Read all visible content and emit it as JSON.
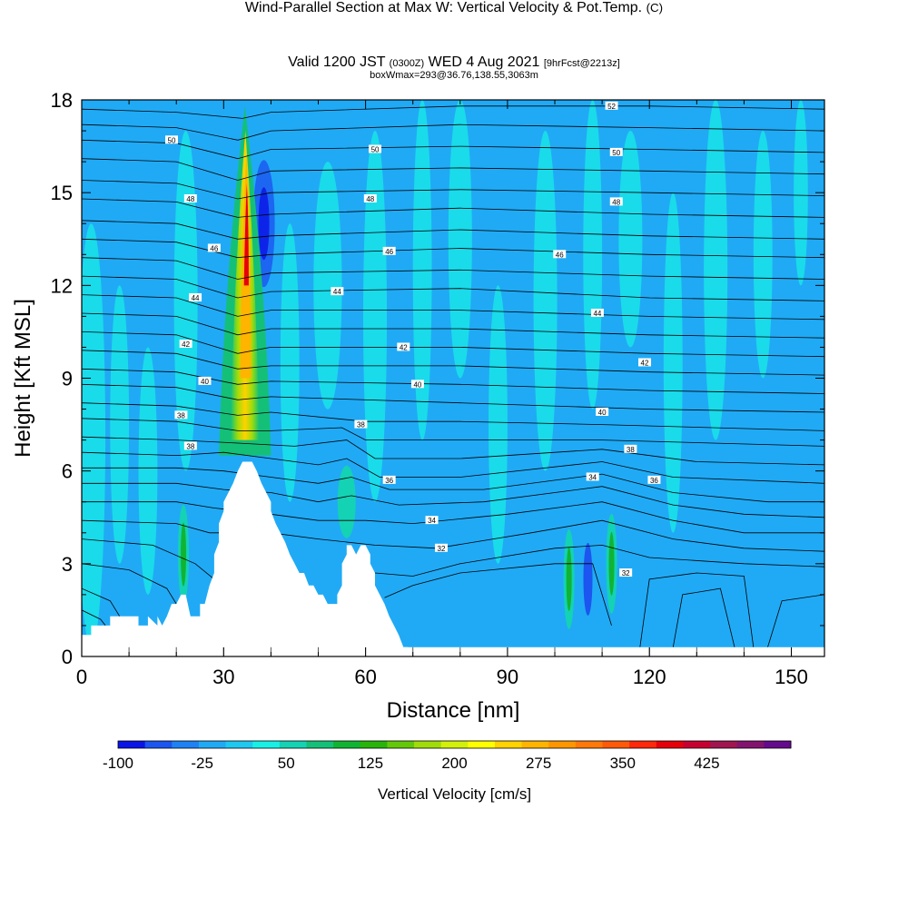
{
  "header": {
    "title": "Wind-Parallel Section at Max W: Vertical Velocity & Pot.Temp.",
    "copyright": "(C)",
    "valid_prefix": "Valid 1200 JST",
    "valid_z": "(0300Z)",
    "valid_date": "WED 4 Aug 2021",
    "forecast": "[9hrFcst@2213z]",
    "boxwmax": "boxWmax=293@36.76,138.55,3063m"
  },
  "chart_data": {
    "type": "contour",
    "xlabel": "Distance [nm]",
    "ylabel": "Height [Kft MSL]",
    "xlim": [
      0,
      157
    ],
    "ylim": [
      0,
      18
    ],
    "x_ticks": [
      0,
      30,
      60,
      90,
      120,
      150
    ],
    "y_ticks": [
      0,
      3,
      6,
      9,
      12,
      15,
      18
    ],
    "colorbar": {
      "title": "Vertical Velocity [cm/s]",
      "min": -100,
      "max": 500,
      "step": 25,
      "labels": [
        "-100",
        "-25",
        "50",
        "125",
        "200",
        "275",
        "350",
        "425"
      ],
      "colors": [
        "#0a14e6",
        "#1c55f0",
        "#1e82f5",
        "#20aaf5",
        "#1ec8f0",
        "#18f0e6",
        "#14d2b4",
        "#14c078",
        "#10b432",
        "#28b40a",
        "#64c80a",
        "#a0dc0a",
        "#d2f00a",
        "#ffff00",
        "#ffd200",
        "#ffb400",
        "#ff9600",
        "#ff780a",
        "#ff5a0a",
        "#ff280a",
        "#e6000a",
        "#c80032",
        "#a01450",
        "#82146e",
        "#640a8c"
      ]
    },
    "terrain": [
      [
        0,
        0.7
      ],
      [
        2,
        0.7
      ],
      [
        2,
        1.0
      ],
      [
        6,
        1.0
      ],
      [
        6,
        1.3
      ],
      [
        12,
        1.3
      ],
      [
        12,
        1.0
      ],
      [
        14,
        1.0
      ],
      [
        14,
        1.3
      ],
      [
        16,
        1.0
      ],
      [
        16,
        1.3
      ],
      [
        17,
        1.0
      ],
      [
        18,
        1.3
      ],
      [
        19,
        1.7
      ],
      [
        20,
        1.7
      ],
      [
        21,
        2.0
      ],
      [
        22,
        2.0
      ],
      [
        23,
        1.3
      ],
      [
        25,
        1.3
      ],
      [
        25,
        1.7
      ],
      [
        26,
        1.7
      ],
      [
        27,
        2.3
      ],
      [
        28,
        2.7
      ],
      [
        28,
        3.3
      ],
      [
        29,
        3.7
      ],
      [
        29,
        4.3
      ],
      [
        30,
        4.7
      ],
      [
        30,
        5.0
      ],
      [
        31,
        5.3
      ],
      [
        32,
        5.6
      ],
      [
        33,
        6.0
      ],
      [
        34,
        6.3
      ],
      [
        36,
        6.3
      ],
      [
        37,
        6.0
      ],
      [
        38,
        5.6
      ],
      [
        39,
        5.3
      ],
      [
        40,
        5.0
      ],
      [
        40,
        4.7
      ],
      [
        41,
        4.3
      ],
      [
        42,
        4.0
      ],
      [
        43,
        3.7
      ],
      [
        44,
        3.3
      ],
      [
        45,
        3.0
      ],
      [
        46,
        2.7
      ],
      [
        47,
        2.7
      ],
      [
        48,
        2.3
      ],
      [
        49,
        2.3
      ],
      [
        50,
        2.0
      ],
      [
        51,
        2.0
      ],
      [
        52,
        1.7
      ],
      [
        54,
        1.7
      ],
      [
        54,
        2.0
      ],
      [
        55,
        2.3
      ],
      [
        55,
        3.0
      ],
      [
        56,
        3.3
      ],
      [
        56,
        3.6
      ],
      [
        57,
        3.6
      ],
      [
        58,
        3.3
      ],
      [
        59,
        3.6
      ],
      [
        60,
        3.6
      ],
      [
        61,
        3.3
      ],
      [
        61,
        3.0
      ],
      [
        62,
        2.7
      ],
      [
        62,
        2.3
      ],
      [
        63,
        2.0
      ],
      [
        64,
        1.7
      ],
      [
        65,
        1.3
      ],
      [
        66,
        1.0
      ],
      [
        67,
        0.7
      ],
      [
        68,
        0.3
      ],
      [
        69,
        0.3
      ]
    ],
    "theta_labels": [
      {
        "text": "52",
        "x": 112,
        "y": 17.8
      },
      {
        "text": "50",
        "x": 19,
        "y": 16.7
      },
      {
        "text": "50",
        "x": 62,
        "y": 16.4
      },
      {
        "text": "50",
        "x": 113,
        "y": 16.3
      },
      {
        "text": "48",
        "x": 23,
        "y": 14.8
      },
      {
        "text": "48",
        "x": 61,
        "y": 14.8
      },
      {
        "text": "48",
        "x": 113,
        "y": 14.7
      },
      {
        "text": "46",
        "x": 28,
        "y": 13.2
      },
      {
        "text": "46",
        "x": 65,
        "y": 13.1
      },
      {
        "text": "46",
        "x": 101,
        "y": 13.0
      },
      {
        "text": "44",
        "x": 24,
        "y": 11.6
      },
      {
        "text": "44",
        "x": 54,
        "y": 11.8
      },
      {
        "text": "44",
        "x": 109,
        "y": 11.1
      },
      {
        "text": "42",
        "x": 22,
        "y": 10.1
      },
      {
        "text": "42",
        "x": 68,
        "y": 10.0
      },
      {
        "text": "42",
        "x": 119,
        "y": 9.5
      },
      {
        "text": "40",
        "x": 26,
        "y": 8.9
      },
      {
        "text": "40",
        "x": 71,
        "y": 8.8
      },
      {
        "text": "40",
        "x": 110,
        "y": 7.9
      },
      {
        "text": "38",
        "x": 21,
        "y": 7.8
      },
      {
        "text": "38",
        "x": 59,
        "y": 7.5
      },
      {
        "text": "38",
        "x": 116,
        "y": 6.7
      },
      {
        "text": "38",
        "x": 23,
        "y": 6.8
      },
      {
        "text": "36",
        "x": 65,
        "y": 5.7
      },
      {
        "text": "36",
        "x": 121,
        "y": 5.7
      },
      {
        "text": "34",
        "x": 108,
        "y": 5.8
      },
      {
        "text": "34",
        "x": 74,
        "y": 4.4
      },
      {
        "text": "32",
        "x": 76,
        "y": 3.5
      },
      {
        "text": "32",
        "x": 115,
        "y": 2.7
      }
    ],
    "theta_lines": [
      [
        [
          0,
          17.7
        ],
        [
          20,
          17.6
        ],
        [
          34,
          17.4
        ],
        [
          40,
          17.6
        ],
        [
          80,
          17.8
        ],
        [
          120,
          17.8
        ],
        [
          157,
          17.7
        ]
      ],
      [
        [
          0,
          17.2
        ],
        [
          20,
          17.1
        ],
        [
          33,
          16.7
        ],
        [
          40,
          17.0
        ],
        [
          80,
          17.2
        ],
        [
          120,
          17.1
        ],
        [
          157,
          17.0
        ]
      ],
      [
        [
          0,
          16.7
        ],
        [
          20,
          16.6
        ],
        [
          33,
          16.1
        ],
        [
          40,
          16.4
        ],
        [
          80,
          16.5
        ],
        [
          120,
          16.4
        ],
        [
          157,
          16.3
        ]
      ],
      [
        [
          0,
          16.1
        ],
        [
          20,
          16.0
        ],
        [
          33,
          15.4
        ],
        [
          40,
          15.7
        ],
        [
          80,
          15.8
        ],
        [
          120,
          15.7
        ],
        [
          157,
          15.6
        ]
      ],
      [
        [
          0,
          15.4
        ],
        [
          20,
          15.3
        ],
        [
          33,
          14.8
        ],
        [
          40,
          15.0
        ],
        [
          80,
          15.1
        ],
        [
          120,
          15.0
        ],
        [
          157,
          14.9
        ]
      ],
      [
        [
          0,
          14.8
        ],
        [
          20,
          14.7
        ],
        [
          33,
          14.2
        ],
        [
          40,
          14.3
        ],
        [
          80,
          14.5
        ],
        [
          120,
          14.3
        ],
        [
          157,
          14.2
        ]
      ],
      [
        [
          0,
          14.1
        ],
        [
          20,
          14.0
        ],
        [
          33,
          13.5
        ],
        [
          40,
          13.6
        ],
        [
          80,
          13.8
        ],
        [
          120,
          13.6
        ],
        [
          157,
          13.5
        ]
      ],
      [
        [
          0,
          13.5
        ],
        [
          20,
          13.4
        ],
        [
          33,
          12.9
        ],
        [
          40,
          13.0
        ],
        [
          80,
          13.2
        ],
        [
          120,
          13.0
        ],
        [
          157,
          12.9
        ]
      ],
      [
        [
          0,
          12.9
        ],
        [
          20,
          12.8
        ],
        [
          33,
          12.2
        ],
        [
          40,
          12.4
        ],
        [
          80,
          12.5
        ],
        [
          120,
          12.3
        ],
        [
          157,
          12.2
        ]
      ],
      [
        [
          0,
          12.3
        ],
        [
          20,
          12.2
        ],
        [
          33,
          11.6
        ],
        [
          40,
          11.8
        ],
        [
          80,
          11.9
        ],
        [
          120,
          11.6
        ],
        [
          157,
          11.5
        ]
      ],
      [
        [
          0,
          11.7
        ],
        [
          20,
          11.6
        ],
        [
          33,
          11.0
        ],
        [
          40,
          11.2
        ],
        [
          80,
          11.2
        ],
        [
          120,
          11.0
        ],
        [
          157,
          10.9
        ]
      ],
      [
        [
          0,
          11.1
        ],
        [
          20,
          11.0
        ],
        [
          33,
          10.4
        ],
        [
          40,
          10.6
        ],
        [
          80,
          10.6
        ],
        [
          120,
          10.4
        ],
        [
          157,
          10.3
        ]
      ],
      [
        [
          0,
          10.5
        ],
        [
          20,
          10.4
        ],
        [
          33,
          9.8
        ],
        [
          40,
          10.0
        ],
        [
          80,
          10.0
        ],
        [
          120,
          9.8
        ],
        [
          157,
          9.7
        ]
      ],
      [
        [
          0,
          9.9
        ],
        [
          20,
          9.8
        ],
        [
          33,
          9.3
        ],
        [
          40,
          9.4
        ],
        [
          80,
          9.4
        ],
        [
          120,
          9.2
        ],
        [
          157,
          9.1
        ]
      ],
      [
        [
          0,
          9.3
        ],
        [
          20,
          9.2
        ],
        [
          33,
          8.8
        ],
        [
          40,
          8.9
        ],
        [
          80,
          8.8
        ],
        [
          120,
          8.6
        ],
        [
          157,
          8.5
        ]
      ],
      [
        [
          0,
          8.8
        ],
        [
          20,
          8.7
        ],
        [
          33,
          8.3
        ],
        [
          40,
          8.4
        ],
        [
          80,
          8.2
        ],
        [
          120,
          8.0
        ],
        [
          157,
          7.9
        ]
      ],
      [
        [
          0,
          8.2
        ],
        [
          20,
          8.1
        ],
        [
          33,
          7.8
        ],
        [
          40,
          7.9
        ],
        [
          60,
          7.6
        ],
        [
          80,
          7.6
        ],
        [
          110,
          7.5
        ],
        [
          157,
          7.3
        ]
      ],
      [
        [
          0,
          7.7
        ],
        [
          20,
          7.6
        ],
        [
          33,
          7.3
        ],
        [
          40,
          7.3
        ],
        [
          55,
          7.4
        ],
        [
          60,
          7.0
        ],
        [
          80,
          7.0
        ],
        [
          110,
          7.0
        ],
        [
          157,
          6.8
        ]
      ],
      [
        [
          0,
          7.1
        ],
        [
          20,
          7.0
        ],
        [
          33,
          6.9
        ],
        [
          45,
          6.8
        ],
        [
          56,
          7.0
        ],
        [
          62,
          6.4
        ],
        [
          80,
          6.4
        ],
        [
          110,
          6.7
        ],
        [
          130,
          6.3
        ],
        [
          157,
          6.2
        ]
      ],
      [
        [
          0,
          6.6
        ],
        [
          20,
          6.5
        ],
        [
          30,
          6.6
        ],
        [
          40,
          6.4
        ],
        [
          50,
          6.2
        ],
        [
          56,
          6.4
        ],
        [
          63,
          5.8
        ],
        [
          80,
          5.8
        ],
        [
          110,
          6.3
        ],
        [
          125,
          5.8
        ],
        [
          157,
          5.6
        ]
      ],
      [
        [
          0,
          6.1
        ],
        [
          20,
          6.1
        ],
        [
          30,
          6.0
        ],
        [
          40,
          5.8
        ],
        [
          50,
          5.6
        ],
        [
          57,
          5.8
        ],
        [
          65,
          5.4
        ],
        [
          85,
          5.4
        ],
        [
          110,
          5.9
        ],
        [
          125,
          5.3
        ],
        [
          145,
          5.0
        ],
        [
          157,
          5.0
        ]
      ],
      [
        [
          0,
          5.6
        ],
        [
          20,
          5.6
        ],
        [
          30,
          5.4
        ],
        [
          40,
          5.3
        ],
        [
          50,
          5.0
        ],
        [
          57,
          5.2
        ],
        [
          67,
          4.9
        ],
        [
          85,
          5.0
        ],
        [
          110,
          5.5
        ],
        [
          125,
          4.9
        ],
        [
          140,
          4.6
        ],
        [
          157,
          4.5
        ]
      ],
      [
        [
          0,
          5.0
        ],
        [
          20,
          5.0
        ],
        [
          28,
          4.8
        ],
        [
          40,
          4.6
        ],
        [
          50,
          4.4
        ],
        [
          60,
          4.4
        ],
        [
          70,
          4.3
        ],
        [
          90,
          4.6
        ],
        [
          110,
          5.0
        ],
        [
          125,
          4.4
        ],
        [
          140,
          4.0
        ],
        [
          157,
          4.0
        ]
      ],
      [
        [
          0,
          4.4
        ],
        [
          20,
          4.3
        ],
        [
          27,
          4.0
        ],
        [
          40,
          4.0
        ],
        [
          50,
          3.8
        ],
        [
          62,
          3.6
        ],
        [
          75,
          3.5
        ],
        [
          95,
          4.0
        ],
        [
          110,
          4.4
        ],
        [
          125,
          3.8
        ],
        [
          140,
          3.5
        ],
        [
          157,
          3.4
        ]
      ],
      [
        [
          0,
          3.8
        ],
        [
          15,
          3.6
        ],
        [
          24,
          3.0
        ],
        [
          28,
          2.5
        ]
      ],
      [
        [
          62,
          2.7
        ],
        [
          70,
          2.6
        ],
        [
          80,
          3.0
        ],
        [
          100,
          3.5
        ],
        [
          110,
          3.6
        ],
        [
          120,
          3.2
        ],
        [
          140,
          3.0
        ],
        [
          157,
          2.9
        ]
      ],
      [
        [
          0,
          3.0
        ],
        [
          10,
          2.8
        ],
        [
          18,
          2.2
        ],
        [
          20,
          1.7
        ]
      ],
      [
        [
          64,
          1.9
        ],
        [
          70,
          2.3
        ],
        [
          80,
          2.7
        ],
        [
          100,
          3.0
        ],
        [
          108,
          3.0
        ],
        [
          112,
          1.0
        ]
      ],
      [
        [
          0,
          2.2
        ],
        [
          6,
          1.8
        ],
        [
          8,
          1.3
        ]
      ],
      [
        [
          118,
          0.3
        ],
        [
          120,
          2.5
        ],
        [
          130,
          2.7
        ],
        [
          140,
          2.6
        ],
        [
          142,
          0.3
        ]
      ],
      [
        [
          0,
          1.5
        ],
        [
          4,
          1.2
        ],
        [
          5,
          1.0
        ]
      ],
      [
        [
          125,
          0.3
        ],
        [
          127,
          2.0
        ],
        [
          135,
          2.2
        ],
        [
          138,
          0.3
        ]
      ],
      [
        [
          145,
          0.3
        ],
        [
          148,
          1.8
        ],
        [
          157,
          2.0
        ]
      ]
    ]
  }
}
